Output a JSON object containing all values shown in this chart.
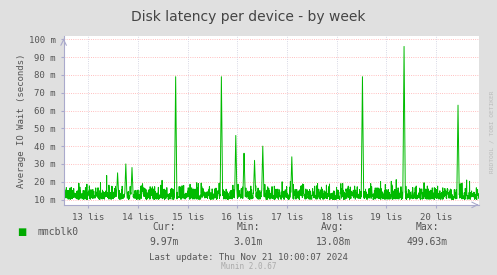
{
  "title": "Disk latency per device - by week",
  "ylabel": "Average IO Wait (seconds)",
  "background_color": "#e0e0e0",
  "plot_bg_color": "#ffffff",
  "grid_color_h": "#ffaaaa",
  "grid_color_v": "#ccccdd",
  "line_color": "#00bb00",
  "ytick_labels": [
    "10 m",
    "20 m",
    "30 m",
    "40 m",
    "50 m",
    "60 m",
    "70 m",
    "80 m",
    "90 m",
    "100 m"
  ],
  "ytick_values": [
    10,
    20,
    30,
    40,
    50,
    60,
    70,
    80,
    90,
    100
  ],
  "xtick_labels": [
    "13 lis",
    "14 lis",
    "15 lis",
    "16 lis",
    "17 lis",
    "18 lis",
    "19 lis",
    "20 lis"
  ],
  "xtick_values": [
    13,
    14,
    15,
    16,
    17,
    18,
    19,
    20
  ],
  "xmin": 12.5,
  "xmax": 20.86,
  "ymin": 7,
  "ymax": 102,
  "legend_label": "mmcblk0",
  "legend_color": "#00aa00",
  "cur_label": "Cur:",
  "cur_val": "9.97m",
  "min_label": "Min:",
  "min_val": "3.01m",
  "avg_label": "Avg:",
  "avg_val": "13.08m",
  "max_label": "Max:",
  "max_val": "499.63m",
  "last_update": "Last update: Thu Nov 21 10:00:07 2024",
  "munin_label": "Munin 2.0.67",
  "rrdtool_label": "RRDTOOL / TOBI OETIKER",
  "title_color": "#444444",
  "text_color": "#555555",
  "tick_color": "#555555",
  "axis_color": "#aaaacc",
  "spike_positions": [
    0.13,
    0.15,
    0.165,
    0.19,
    0.27,
    0.38,
    0.415,
    0.435,
    0.46,
    0.48,
    0.55,
    0.72,
    0.82,
    0.95
  ],
  "spike_heights": [
    25,
    30,
    28,
    19,
    79,
    79,
    46,
    36,
    32,
    40,
    34,
    79,
    96,
    63
  ],
  "noise_seed": 42,
  "n_points": 2016
}
